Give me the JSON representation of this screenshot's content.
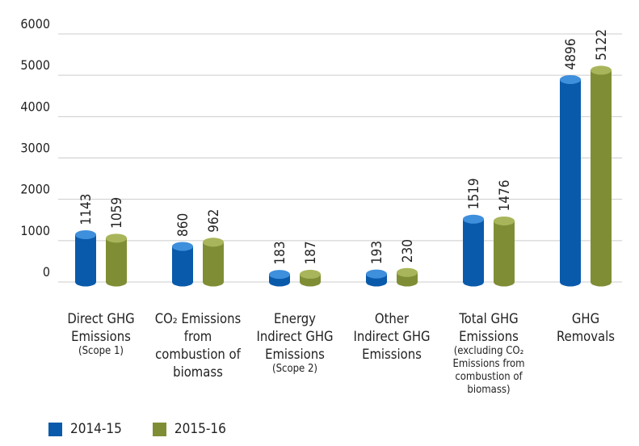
{
  "chart_data": {
    "type": "bar",
    "ylim": [
      0,
      6000
    ],
    "yticks": [
      "0",
      "1000",
      "2000",
      "3000",
      "4000",
      "5000",
      "6000"
    ],
    "grid": true,
    "legend_position": "bottom-left",
    "categories": [
      {
        "lines": [
          "Direct GHG",
          "Emissions"
        ],
        "small": [
          "(Scope 1)"
        ]
      },
      {
        "lines": [
          "CO₂ Emissions",
          "from",
          "combustion of",
          "biomass"
        ],
        "small": []
      },
      {
        "lines": [
          "Energy",
          "Indirect GHG",
          "Emissions"
        ],
        "small": [
          "(Scope 2)"
        ]
      },
      {
        "lines": [
          "Other",
          "Indirect GHG",
          "Emissions"
        ],
        "small": []
      },
      {
        "lines": [
          "Total GHG",
          "Emissions"
        ],
        "small": [
          "(excluding CO₂",
          "Emissions from",
          "combustion of",
          "biomass)"
        ]
      },
      {
        "lines": [
          "GHG",
          "Removals"
        ],
        "small": []
      }
    ],
    "series": [
      {
        "name": "2014-15",
        "color": "#0a5aab",
        "top_color": "#3e8fdc",
        "values": [
          1143,
          860,
          183,
          193,
          1519,
          4896
        ]
      },
      {
        "name": "2015-16",
        "color": "#7f8e35",
        "top_color": "#a9b55a",
        "values": [
          1059,
          962,
          187,
          230,
          1476,
          5122
        ]
      }
    ]
  }
}
